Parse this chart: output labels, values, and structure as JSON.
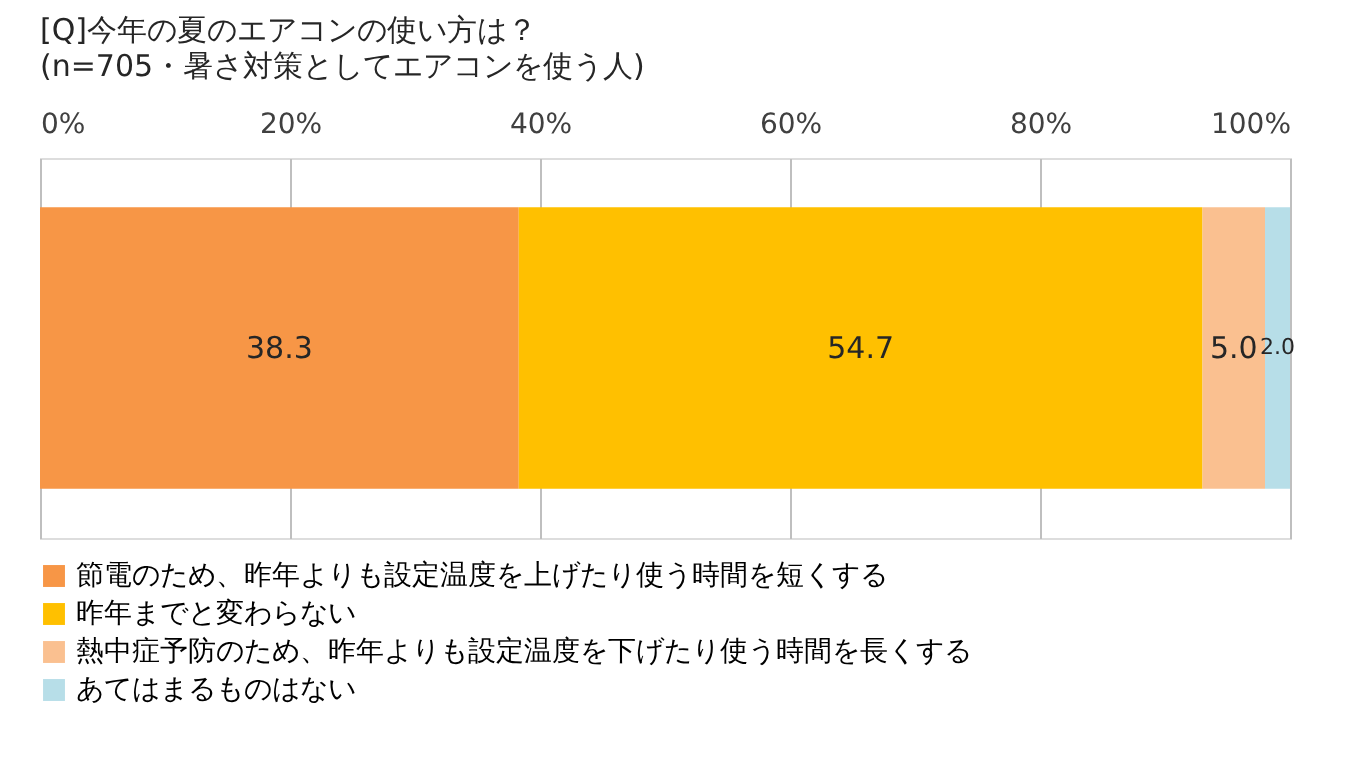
{
  "chart_data": {
    "type": "bar",
    "orientation": "horizontal",
    "stacked": true,
    "title": "[Q]今年の夏のエアコンの使い方は？",
    "subtitle": "(n=705・暑さ対策としてエアコンを使う人)",
    "categories": [
      null
    ],
    "series": [
      {
        "name": "節電のため、昨年よりも設定温度を上げたり使う時間を短くする",
        "color": "#f79646",
        "values": [
          38.3
        ],
        "value_labels": [
          "38.3"
        ]
      },
      {
        "name": "昨年までと変わらない",
        "color": "#ffc000",
        "values": [
          54.7
        ],
        "value_labels": [
          "54.7"
        ]
      },
      {
        "name": "熱中症予防のため、昨年よりも設定温度を下げたり使う時間を長くする",
        "color": "#fac090",
        "values": [
          5.0
        ],
        "value_labels": [
          "5.0"
        ]
      },
      {
        "name": "あてはまるものはない",
        "color": "#b7dee8",
        "values": [
          2.0
        ],
        "value_labels": [
          "2.0"
        ]
      }
    ],
    "xlim": [
      0,
      100
    ],
    "xticks": [
      {
        "value": 0,
        "label": "0%"
      },
      {
        "value": 20,
        "label": "20%"
      },
      {
        "value": 40,
        "label": "40%"
      },
      {
        "value": 60,
        "label": "60%"
      },
      {
        "value": 80,
        "label": "80%"
      },
      {
        "value": 100,
        "label": "100%"
      }
    ],
    "grid": "x",
    "legend": "bottom",
    "tick_labels": "x"
  }
}
